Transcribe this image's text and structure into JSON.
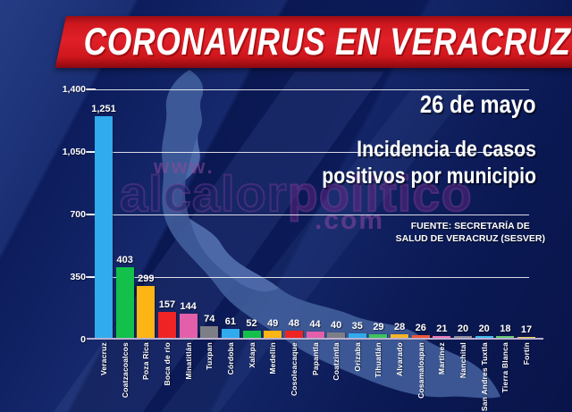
{
  "banner": {
    "title": "CORONAVIRUS EN VERACRUZ"
  },
  "header": {
    "date": "26 de mayo",
    "subtitle_line1": "Incidencia de casos",
    "subtitle_line2": "positivos por municipio",
    "source_line1": "FUENTE: SECRETARÍA DE",
    "source_line2": "SALUD DE VERACRUZ (SESVER)"
  },
  "watermark": {
    "www": "www.",
    "name_a": "alcalor",
    "name_b": "politico",
    "com": ".com"
  },
  "colors": {
    "banner_red": "#d6181f",
    "background_navy": "#0c1c5c",
    "map_blue": "#44629f",
    "gridline_white": "#ffffff",
    "baseline_lavender": "#b9b0d0"
  },
  "chart_data": {
    "type": "bar",
    "title": "Incidencia de casos positivos por municipio",
    "date_annotation": "26 de mayo",
    "source": "FUENTE: SECRETARÍA DE SALUD DE VERACRUZ (SESVER)",
    "grid": true,
    "legend": "none",
    "ylim": [
      0,
      1400
    ],
    "yticks": [
      0,
      350,
      700,
      1050,
      1400
    ],
    "ytick_labels": [
      "0",
      "350",
      "700",
      "1,050",
      "1,400"
    ],
    "categories": [
      "Veracruz",
      "Coatzacoalcos",
      "Poza Rica",
      "Boca de río",
      "Minatitlán",
      "Tuxpan",
      "Córdoba",
      "Xalapa",
      "Medellín",
      "Cosoleacaque",
      "Papantla",
      "Coatzintla",
      "Orizaba",
      "Tihuatlán",
      "Alvarado",
      "Cosamaloapan",
      "Martínez",
      "Nanchital",
      "San Andres Tuxtla",
      "Tierra Blanca",
      "Fortín"
    ],
    "values": [
      1251,
      403,
      299,
      157,
      144,
      74,
      61,
      52,
      49,
      48,
      44,
      40,
      35,
      29,
      28,
      26,
      21,
      20,
      20,
      18,
      17
    ],
    "value_labels": [
      "1,251",
      "403",
      "299",
      "157",
      "144",
      "74",
      "61",
      "52",
      "49",
      "48",
      "44",
      "40",
      "35",
      "29",
      "28",
      "26",
      "21",
      "20",
      "20",
      "18",
      "17"
    ],
    "bar_colors": [
      "#2fabee",
      "#12c04a",
      "#fdb515",
      "#ee2424",
      "#e35fa9",
      "#7e7e86",
      "#2fabee",
      "#12c04a",
      "#fdb515",
      "#ee2424",
      "#e35fa9",
      "#7e7e86",
      "#2fabee",
      "#3cc45b",
      "#f2b429",
      "#f0563a",
      "#ed77b8",
      "#8f8f97",
      "#3fbbeb",
      "#67cb72",
      "#f3cb55"
    ]
  }
}
